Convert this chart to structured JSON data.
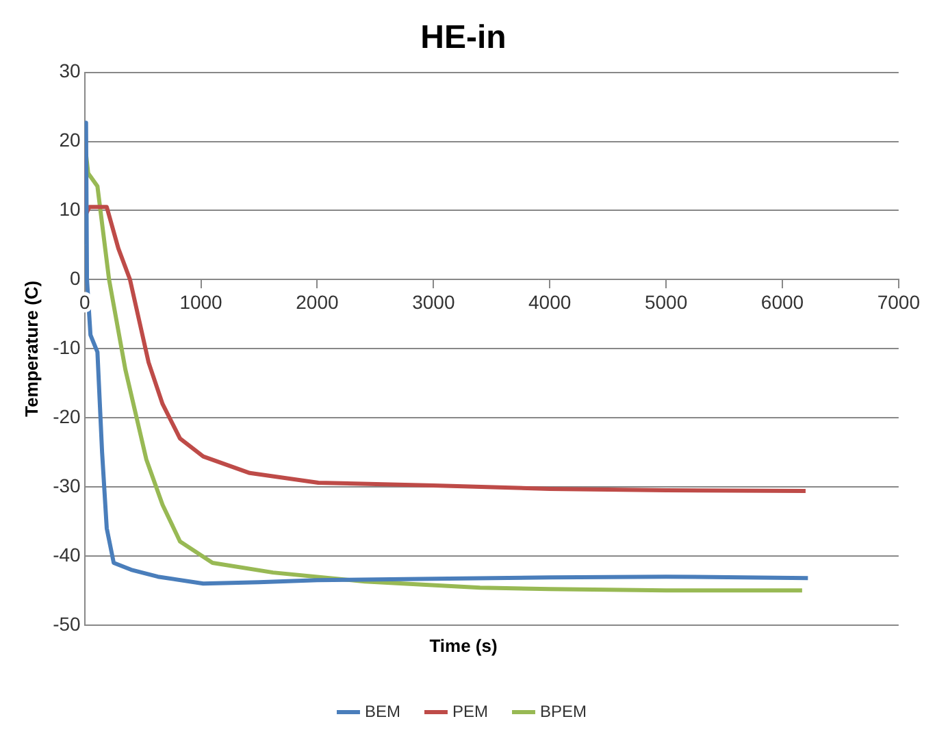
{
  "chart_data": {
    "type": "line",
    "title": "HE-in",
    "xlabel": "Time (s)",
    "ylabel": "Temperature (C)",
    "xlim": [
      0,
      7000
    ],
    "xticks": [
      0,
      1000,
      2000,
      3000,
      4000,
      5000,
      6000,
      7000
    ],
    "ylim": [
      -50,
      30
    ],
    "yticks": [
      -50,
      -40,
      -30,
      -20,
      -10,
      0,
      10,
      20,
      30
    ],
    "grid": "y",
    "legend": "bottom",
    "marker": "none",
    "line_style": "solid",
    "series": [
      {
        "name": "BEM",
        "color": "#4a7ebb",
        "x": [
          0,
          12,
          20,
          50,
          110,
          150,
          190,
          250,
          400,
          630,
          1020,
          1500,
          2000,
          3000,
          4000,
          5000,
          6220
        ],
        "values": [
          5,
          22.7,
          0,
          -8,
          -10.5,
          -25,
          -36,
          -41,
          -42,
          -43,
          -44,
          -43.8,
          -43.5,
          -43.3,
          -43.1,
          -43,
          -43.2
        ]
      },
      {
        "name": "PEM",
        "color": "#be4b48",
        "x": [
          0,
          15,
          40,
          190,
          290,
          390,
          550,
          670,
          820,
          1020,
          1420,
          2010,
          3000,
          4000,
          5000,
          6200
        ],
        "values": [
          20,
          9.6,
          10.5,
          10.5,
          4.5,
          0,
          -12,
          -18,
          -23,
          -25.6,
          -28,
          -29.4,
          -29.8,
          -30.3,
          -30.5,
          -30.6
        ]
      },
      {
        "name": "BPEM",
        "color": "#98b954",
        "x": [
          0,
          30,
          110,
          210,
          350,
          530,
          670,
          820,
          1100,
          1620,
          2410,
          3400,
          4000,
          5000,
          6170
        ],
        "values": [
          20,
          15.4,
          13.5,
          0,
          -13,
          -26,
          -32.6,
          -37.9,
          -41,
          -42.4,
          -43.7,
          -44.6,
          -44.8,
          -45,
          -45
        ]
      }
    ]
  }
}
